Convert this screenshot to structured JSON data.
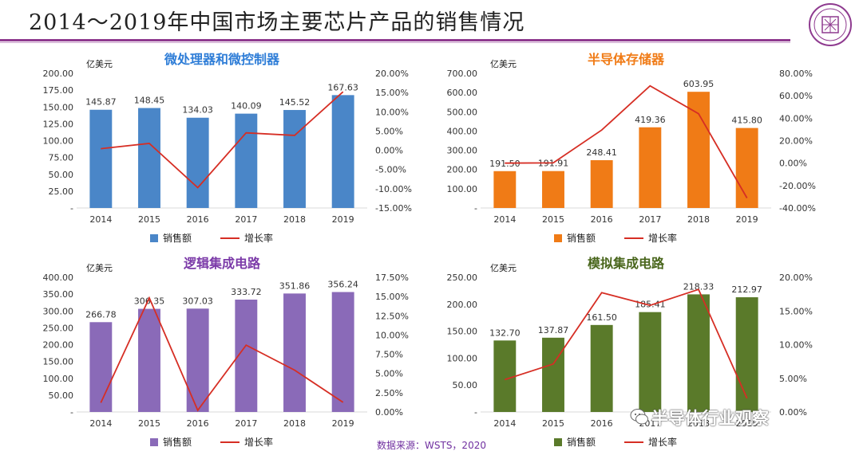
{
  "header": {
    "title": "2014～2019年中国市场主要芯片产品的销售情况",
    "source": "数据来源：WSTS，2020",
    "watermark": "半导体行业观察"
  },
  "colors": {
    "accent_rule": "#8e3a8f",
    "line": "#d62e24",
    "title_blue": "#2e7dd7",
    "title_orange": "#f07b16",
    "title_purple": "#7b3aa8",
    "title_green": "#49661c"
  },
  "chart_data": [
    {
      "type": "bar",
      "title": "微处理器和微控制器",
      "unit_label": "亿美元",
      "categories": [
        "2014",
        "2015",
        "2016",
        "2017",
        "2018",
        "2019"
      ],
      "series": [
        {
          "name": "销售额",
          "axis": "left",
          "values": [
            145.87,
            148.45,
            134.03,
            140.09,
            145.52,
            167.63
          ],
          "labels": [
            "145.87",
            "148.45",
            "134.03",
            "140.09",
            "145.52",
            "167.63"
          ],
          "color": "#4a86c8"
        },
        {
          "name": "增长率",
          "axis": "right",
          "type": "line",
          "values": [
            0.004,
            0.0177,
            -0.0971,
            0.0452,
            0.0387,
            0.152
          ],
          "color": "#d62e24"
        }
      ],
      "ylim": [
        0,
        200
      ],
      "yticks": [
        "200.00",
        "175.00",
        "150.00",
        "125.00",
        "100.00",
        "75.00",
        "50.00",
        "25.00",
        "-"
      ],
      "y2lim": [
        -0.15,
        0.2
      ],
      "y2ticks": [
        "20.00%",
        "15.00%",
        "10.00%",
        "5.00%",
        "0.00%",
        "-5.00%",
        "-10.00%",
        "-15.00%"
      ],
      "title_color": "#2e7dd7"
    },
    {
      "type": "bar",
      "title": "半导体存储器",
      "unit_label": "亿美元",
      "categories": [
        "2014",
        "2015",
        "2016",
        "2017",
        "2018",
        "2019"
      ],
      "series": [
        {
          "name": "销售额",
          "axis": "left",
          "values": [
            191.5,
            191.91,
            248.41,
            419.36,
            603.95,
            415.8
          ],
          "labels": [
            "191.50",
            "191.91",
            "248.41",
            "419.36",
            "603.95",
            "415.80"
          ],
          "color": "#f07b16"
        },
        {
          "name": "增长率",
          "axis": "right",
          "type": "line",
          "values": [
            0.0,
            0.0021,
            0.2944,
            0.6882,
            0.4402,
            -0.3115
          ],
          "color": "#d62e24"
        }
      ],
      "ylim": [
        0,
        700
      ],
      "yticks": [
        "700.00",
        "600.00",
        "500.00",
        "400.00",
        "300.00",
        "200.00",
        "100.00",
        "-"
      ],
      "y2lim": [
        -0.4,
        0.8
      ],
      "y2ticks": [
        "80.00%",
        "60.00%",
        "40.00%",
        "20.00%",
        "0.00%",
        "-20.00%",
        "-40.00%"
      ],
      "title_color": "#f07b16"
    },
    {
      "type": "bar",
      "title": "逻辑集成电路",
      "unit_label": "亿美元",
      "categories": [
        "2014",
        "2015",
        "2016",
        "2017",
        "2018",
        "2019"
      ],
      "series": [
        {
          "name": "销售额",
          "axis": "left",
          "values": [
            266.78,
            306.35,
            307.03,
            333.72,
            351.86,
            356.24
          ],
          "labels": [
            "266.78",
            "306.35",
            "307.03",
            "333.72",
            "351.86",
            "356.24"
          ],
          "color": "#8a6ab8"
        },
        {
          "name": "增长率",
          "axis": "right",
          "type": "line",
          "values": [
            0.012,
            0.1483,
            0.0022,
            0.0869,
            0.0544,
            0.0125
          ],
          "color": "#d62e24"
        }
      ],
      "ylim": [
        0,
        400
      ],
      "yticks": [
        "400.00",
        "350.00",
        "300.00",
        "250.00",
        "200.00",
        "150.00",
        "100.00",
        "50.00",
        "-"
      ],
      "y2lim": [
        0,
        0.175
      ],
      "y2ticks": [
        "17.50%",
        "15.00%",
        "12.50%",
        "10.00%",
        "7.50%",
        "5.00%",
        "2.50%",
        "0.00%"
      ],
      "title_color": "#7b3aa8"
    },
    {
      "type": "bar",
      "title": "模拟集成电路",
      "unit_label": "亿美元",
      "categories": [
        "2014",
        "2015",
        "2016",
        "2017",
        "2018",
        "2019"
      ],
      "series": [
        {
          "name": "销售额",
          "axis": "left",
          "values": [
            132.7,
            137.87,
            161.5,
            185.41,
            218.33,
            212.97
          ],
          "labels": [
            "132.70",
            "137.87",
            "161.50",
            "185.41",
            "218.33",
            "212.97"
          ],
          "color": "#5a7a2a"
        },
        {
          "name": "增长率",
          "axis": "right",
          "type": "line",
          "values": [
            0.01,
            0.039,
            0.1714,
            0.148,
            0.1775,
            -0.0245
          ],
          "color": "#d62e24"
        }
      ],
      "ylim": [
        0,
        250
      ],
      "yticks": [
        "250.00",
        "200.00",
        "150.00",
        "100.00",
        "50.00",
        "-"
      ],
      "y2lim": [
        -0.05,
        0.2
      ],
      "y2ticks": [
        "20.00%",
        "15.00%",
        "10.00%",
        "5.00%",
        "0.00%"
      ],
      "title_color": "#49661c"
    }
  ]
}
